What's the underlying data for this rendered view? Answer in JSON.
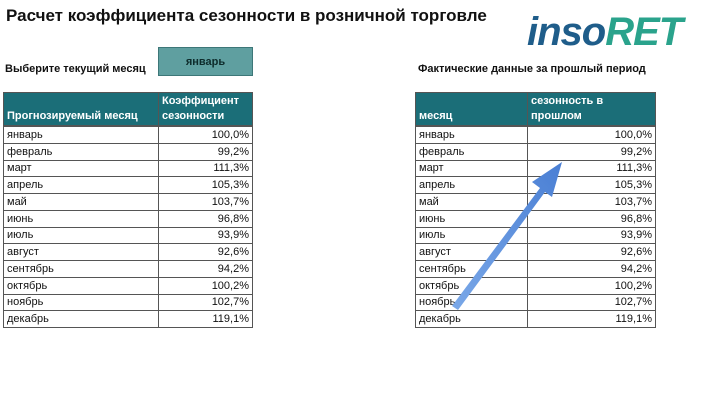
{
  "header": {
    "title": "Расчет коэффициента сезонности в розничной торговле",
    "logo_left": "inso",
    "logo_right": "RET"
  },
  "selector": {
    "label": "Выберите текущий месяц",
    "value": "январь"
  },
  "right_label": "Фактические данные за прошлый период",
  "forecast_table": {
    "columns": [
      "Прогнозируемый месяц",
      "Коэффициент сезонности"
    ],
    "rows": [
      [
        "январь",
        "100,0%"
      ],
      [
        "февраль",
        "99,2%"
      ],
      [
        "март",
        "111,3%"
      ],
      [
        "апрель",
        "105,3%"
      ],
      [
        "май",
        "103,7%"
      ],
      [
        "июнь",
        "96,8%"
      ],
      [
        "июль",
        "93,9%"
      ],
      [
        "август",
        "92,6%"
      ],
      [
        "сентябрь",
        "94,2%"
      ],
      [
        "октябрь",
        "100,2%"
      ],
      [
        "ноябрь",
        "102,7%"
      ],
      [
        "декабрь",
        "119,1%"
      ]
    ]
  },
  "actual_table": {
    "columns": [
      "месяц",
      "Фактическая сезонность в прошлом"
    ],
    "rows": [
      [
        "январь",
        "100,0%"
      ],
      [
        "февраль",
        "99,2%"
      ],
      [
        "март",
        "111,3%"
      ],
      [
        "апрель",
        "105,3%"
      ],
      [
        "май",
        "103,7%"
      ],
      [
        "июнь",
        "96,8%"
      ],
      [
        "июль",
        "93,9%"
      ],
      [
        "август",
        "92,6%"
      ],
      [
        "сентябрь",
        "94,2%"
      ],
      [
        "октябрь",
        "100,2%"
      ],
      [
        "ноябрь",
        "102,7%"
      ],
      [
        "декабрь",
        "119,1%"
      ]
    ]
  }
}
